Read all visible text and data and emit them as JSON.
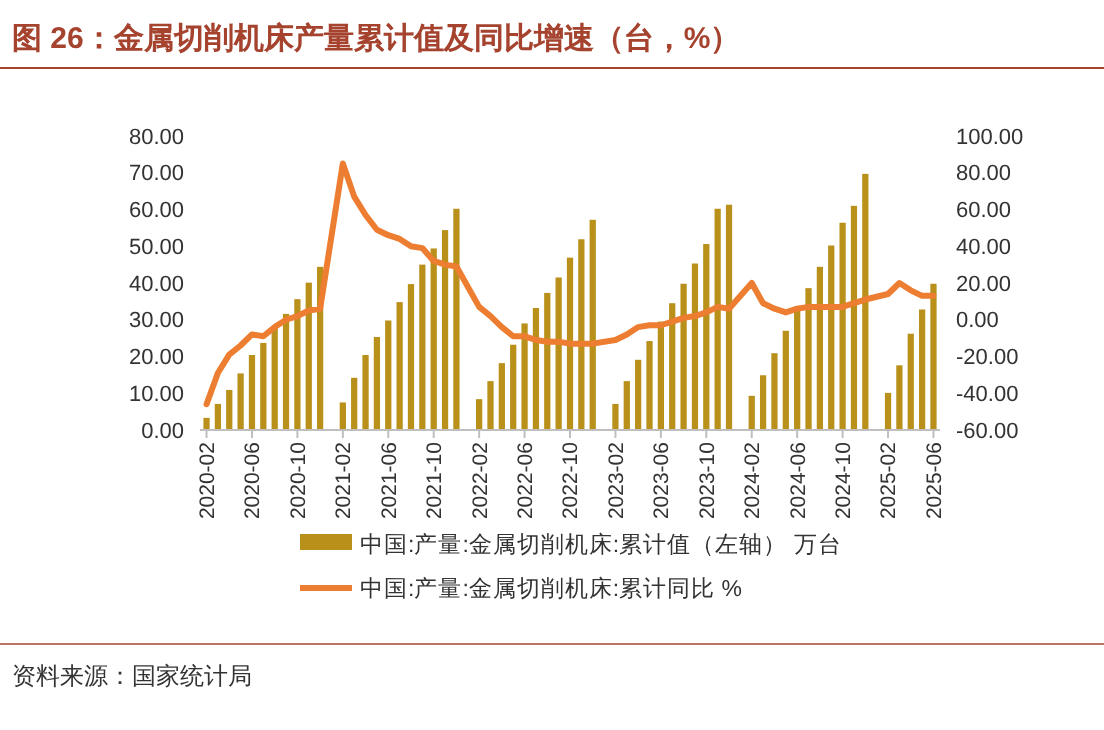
{
  "chart_data": {
    "type": "bar",
    "title": "图 26：金属切削机床产量累计值及同比增速（台，%）",
    "categories": [
      "2020-02",
      null,
      null,
      null,
      "2020-06",
      null,
      null,
      null,
      "2020-10",
      null,
      null,
      null,
      "2021-02",
      null,
      null,
      null,
      "2021-06",
      null,
      null,
      null,
      "2021-10",
      null,
      null,
      null,
      "2022-02",
      null,
      null,
      null,
      "2022-06",
      null,
      null,
      null,
      "2022-10",
      null,
      null,
      null,
      "2023-02",
      null,
      null,
      null,
      "2023-06",
      null,
      null,
      null,
      "2023-10",
      null,
      null,
      null,
      "2024-02",
      null,
      null,
      null,
      "2024-06",
      null,
      null,
      null,
      "2024-10",
      null,
      null,
      null,
      "2025-02",
      null,
      null,
      null,
      "2025-06"
    ],
    "series": [
      {
        "name": "中国:产量:金属切削机床:累计值（左轴） 万台",
        "color": "#b8901a",
        "values": [
          3.3,
          7.1,
          10.9,
          15.4,
          20.4,
          23.7,
          27.8,
          31.6,
          35.6,
          40.1,
          44.4,
          null,
          7.5,
          14.2,
          20.4,
          25.3,
          29.8,
          34.8,
          39.7,
          45,
          49.4,
          54.4,
          60.2,
          null,
          8.4,
          13.3,
          18.2,
          23.2,
          29,
          33.2,
          37.3,
          41.5,
          46.9,
          51.9,
          57.2,
          null,
          7.1,
          13.3,
          19.1,
          24.2,
          29.5,
          34.5,
          39.8,
          45.3,
          50.6,
          60.2,
          61.3,
          null,
          9.3,
          14.9,
          20.9,
          27,
          32.8,
          38.6,
          44.4,
          50.2,
          56.4,
          61,
          69.7,
          null,
          10.1,
          17.6,
          26.2,
          32.8,
          39.8
        ]
      },
      {
        "name": "中国:产量:金属切削机床:累计同比 %",
        "type": "line",
        "axis": "y2",
        "color": "#ed7d31",
        "values": [
          -46,
          -29,
          -19,
          -14,
          -8,
          -9,
          -4,
          0,
          2,
          5,
          6,
          null,
          85,
          67,
          57,
          49,
          46,
          44,
          40,
          39,
          32,
          30,
          29,
          null,
          7,
          2,
          -4,
          -9,
          -9,
          -11,
          -12,
          -12,
          -13,
          -13,
          -13,
          null,
          -11,
          -8,
          -4,
          -3,
          -3,
          -1,
          1,
          2,
          4,
          7,
          6,
          null,
          20,
          9,
          6,
          4,
          6,
          7,
          7,
          7,
          7,
          9,
          11,
          null,
          14,
          20,
          16,
          13,
          13
        ]
      }
    ],
    "ylim": [
      0,
      80
    ],
    "yticks": [
      {
        "value": 0,
        "label": "0.00"
      },
      {
        "value": 10,
        "label": "10.00"
      },
      {
        "value": 20,
        "label": "20.00"
      },
      {
        "value": 30,
        "label": "30.00"
      },
      {
        "value": 40,
        "label": "40.00"
      },
      {
        "value": 50,
        "label": "50.00"
      },
      {
        "value": 60,
        "label": "60.00"
      },
      {
        "value": 70,
        "label": "70.00"
      },
      {
        "value": 80,
        "label": "80.00"
      }
    ],
    "y2lim": [
      -60,
      100
    ],
    "y2ticks": [
      {
        "value": -60,
        "label": "-60.00"
      },
      {
        "value": -40,
        "label": "-40.00"
      },
      {
        "value": -20,
        "label": "-20.00"
      },
      {
        "value": 0,
        "label": "0.00"
      },
      {
        "value": 20,
        "label": "20.00"
      },
      {
        "value": 40,
        "label": "40.00"
      },
      {
        "value": 60,
        "label": "60.00"
      },
      {
        "value": 80,
        "label": "80.00"
      },
      {
        "value": 100,
        "label": "100.00"
      }
    ],
    "legend": "bottom",
    "grid": false,
    "annotations": [
      "资料来源：国家统计局"
    ]
  }
}
